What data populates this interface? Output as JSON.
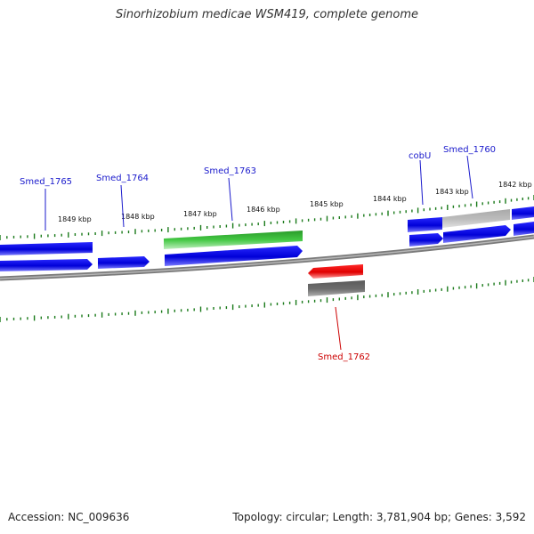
{
  "title": "Sinorhizobium medicae WSM419, complete genome",
  "footer": {
    "accession": "Accession: NC_009636",
    "stats": "Topology: circular; Length: 3,781,904 bp; Genes: 3,592"
  },
  "colors": {
    "background": "#ffffff",
    "backbone": "#8a8a8a",
    "tick": "#1a7a1a",
    "cds_forward": "#0000dd",
    "cds_reverse": "#0000dd",
    "rna": "#3cc03c",
    "highlight": "#ee0000",
    "pseudo_light": "#b8b8b8",
    "pseudo_dark": "#666666",
    "label_blue": "#1a1acc",
    "label_red": "#cc0000"
  },
  "scale_labels": [
    "1849 kbp",
    "1848 kbp",
    "1847 kbp",
    "1846 kbp",
    "1845 kbp",
    "1844 kbp",
    "1843 kbp",
    "1842 kbp"
  ],
  "gene_labels": [
    {
      "id": "smed_1765",
      "text": "Smed_1765",
      "color": "blue"
    },
    {
      "id": "smed_1764",
      "text": "Smed_1764",
      "color": "blue"
    },
    {
      "id": "smed_1763",
      "text": "Smed_1763",
      "color": "blue"
    },
    {
      "id": "cobu",
      "text": "cobU",
      "color": "blue"
    },
    {
      "id": "smed_1760",
      "text": "Smed_1760",
      "color": "blue"
    },
    {
      "id": "smed_1762",
      "text": "Smed_1762",
      "color": "red"
    }
  ]
}
